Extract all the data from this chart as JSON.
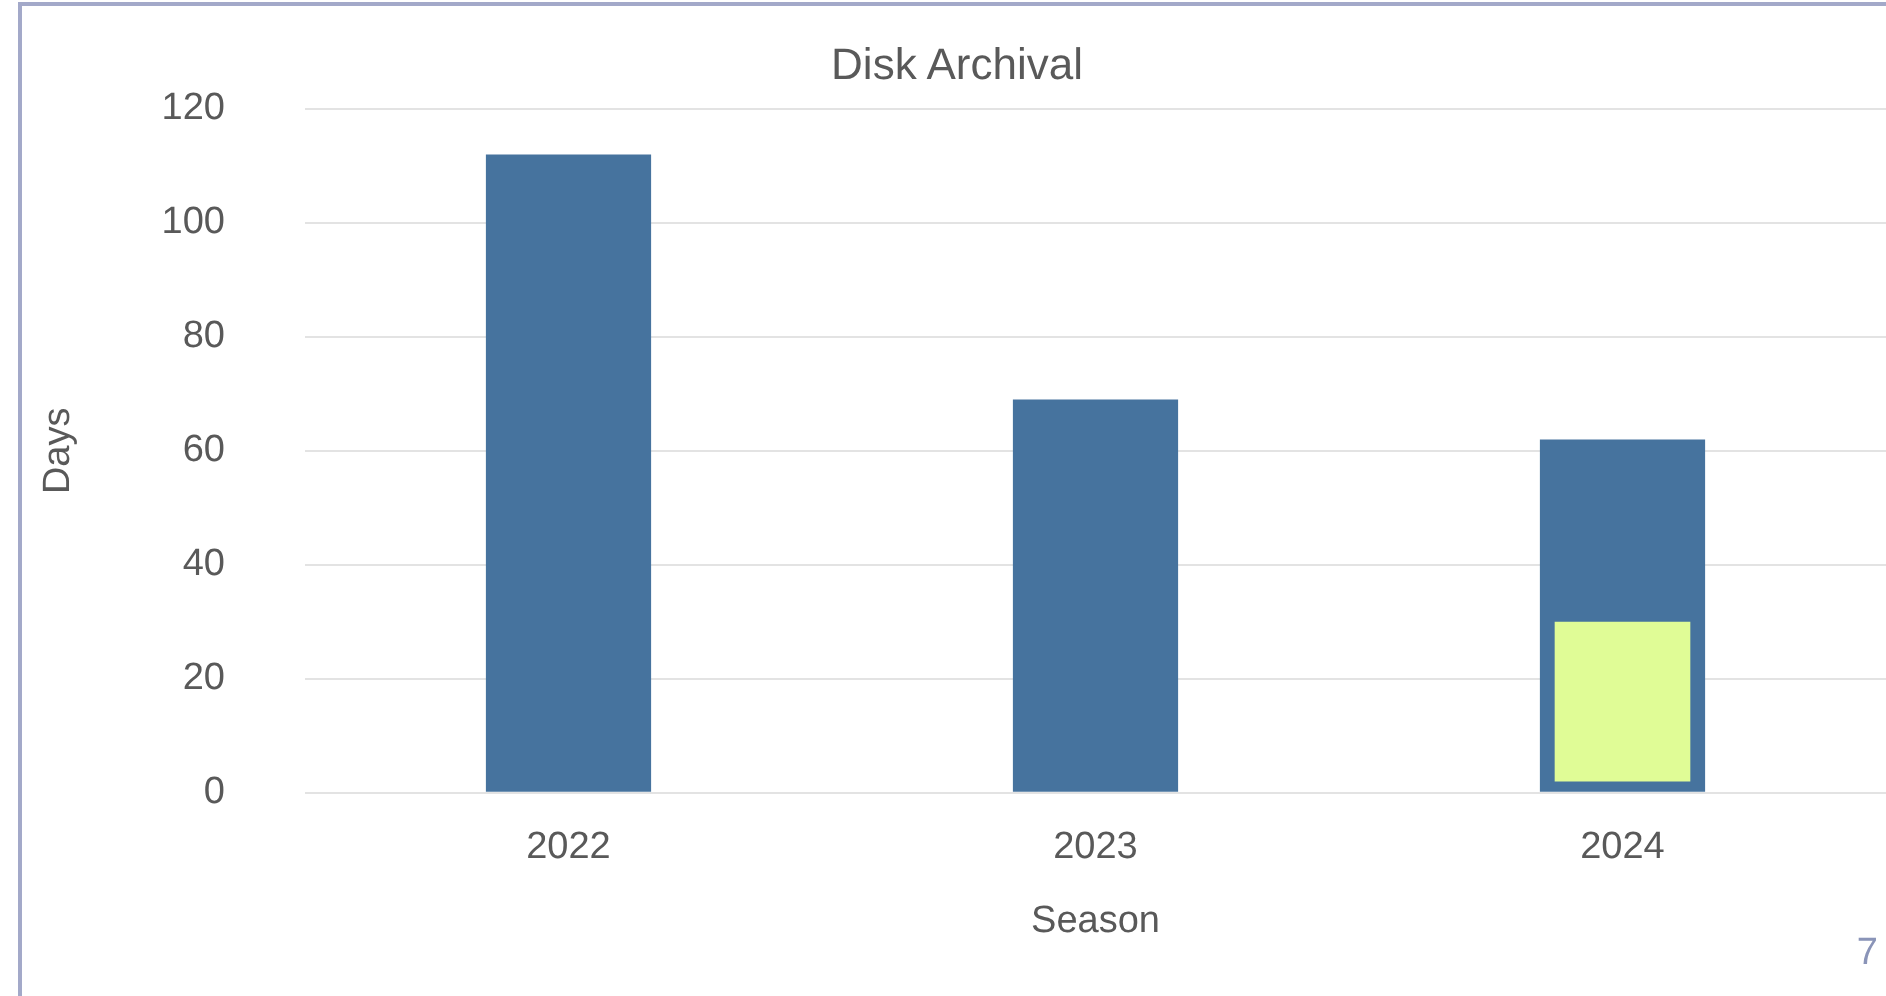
{
  "chart_data": {
    "type": "bar",
    "title": "Disk Archival",
    "xlabel": "Season",
    "ylabel": "Days",
    "categories": [
      "2022",
      "2023",
      "2024"
    ],
    "series": [
      {
        "color": "#46739e",
        "values": [
          112,
          69,
          62
        ]
      },
      {
        "color": "#e0fc96",
        "values": [
          null,
          null,
          28
        ],
        "base": [
          null,
          null,
          2
        ]
      }
    ],
    "ylim": [
      0,
      120
    ],
    "yticks": [
      0,
      20,
      40,
      60,
      80,
      100,
      120
    ],
    "grid": "y",
    "legend": false,
    "annotations": [
      "7"
    ]
  }
}
